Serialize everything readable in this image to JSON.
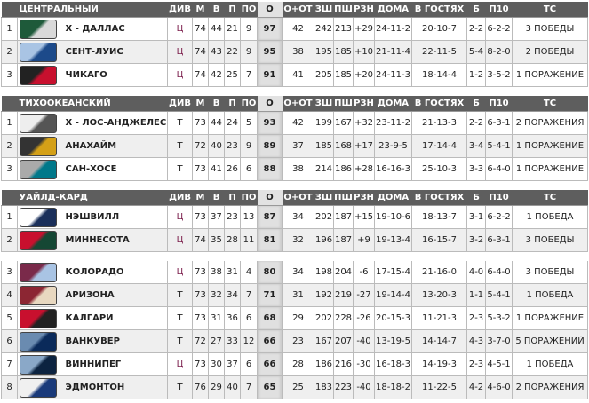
{
  "columns": [
    "ДИВ",
    "М",
    "В",
    "П",
    "ПО",
    "О",
    "О+ОТ",
    "ЗШ",
    "ПШ",
    "РЗН",
    "ДОМА",
    "В ГОСТЯХ",
    "Б",
    "П10",
    "ТС"
  ],
  "groups": [
    {
      "title": "ЦЕНТРАЛЬНЫЙ",
      "rows": [
        {
          "rank": "1",
          "team": "X - ДАЛЛАС",
          "logo": [
            "#1e5a3a",
            "#d9d9d9"
          ],
          "div": "Ц",
          "stats": [
            "74",
            "44",
            "21",
            "9",
            "97",
            "42",
            "242",
            "213",
            "+29",
            "24-11-2",
            "20-10-7",
            "2-2",
            "6-2-2",
            "3 ПОБЕДЫ"
          ]
        },
        {
          "rank": "2",
          "team": "СЕНТ-ЛУИС",
          "logo": [
            "#a9c4e4",
            "#1c4a8a"
          ],
          "div": "Ц",
          "stats": [
            "74",
            "43",
            "22",
            "9",
            "95",
            "38",
            "195",
            "185",
            "+10",
            "21-11-4",
            "22-11-5",
            "5-4",
            "8-2-0",
            "2 ПОБЕДЫ"
          ]
        },
        {
          "rank": "3",
          "team": "ЧИКАГО",
          "logo": [
            "#222",
            "#c8102e"
          ],
          "div": "Ц",
          "stats": [
            "74",
            "42",
            "25",
            "7",
            "91",
            "41",
            "205",
            "185",
            "+20",
            "24-11-3",
            "18-14-4",
            "1-2",
            "3-5-2",
            "1 ПОРАЖЕНИЕ"
          ]
        }
      ]
    },
    {
      "title": "ТИХООКЕАНСКИЙ",
      "rows": [
        {
          "rank": "1",
          "team": "X - ЛОС-АНДЖЕЛЕС",
          "logo": [
            "#eee",
            "#555"
          ],
          "div": "Т",
          "stats": [
            "73",
            "44",
            "24",
            "5",
            "93",
            "42",
            "199",
            "167",
            "+32",
            "23-11-2",
            "21-13-3",
            "2-2",
            "6-3-1",
            "2 ПОРАЖЕНИЯ"
          ]
        },
        {
          "rank": "2",
          "team": "АНАХАЙМ",
          "logo": [
            "#333",
            "#d4a017"
          ],
          "div": "Т",
          "stats": [
            "72",
            "40",
            "23",
            "9",
            "89",
            "37",
            "185",
            "168",
            "+17",
            "23-9-5",
            "17-14-4",
            "3-4",
            "5-4-1",
            "1 ПОРАЖЕНИЕ"
          ]
        },
        {
          "rank": "3",
          "team": "САН-ХОСЕ",
          "logo": [
            "#aaa",
            "#00788a"
          ],
          "div": "Т",
          "stats": [
            "73",
            "41",
            "26",
            "6",
            "88",
            "38",
            "214",
            "186",
            "+28",
            "16-16-3",
            "25-10-3",
            "3-3",
            "6-4-0",
            "1 ПОРАЖЕНИЕ"
          ]
        }
      ]
    },
    {
      "title": "УАЙЛД-КАРД",
      "rows": [
        {
          "rank": "1",
          "team": "НЭШВИЛЛ",
          "logo": [
            "#fff",
            "#1a2f5a"
          ],
          "div": "Ц",
          "stats": [
            "73",
            "37",
            "23",
            "13",
            "87",
            "34",
            "202",
            "187",
            "+15",
            "19-10-6",
            "18-13-7",
            "3-1",
            "6-2-2",
            "1 ПОБЕДА"
          ]
        },
        {
          "rank": "2",
          "team": "МИННЕСОТА",
          "logo": [
            "#c8102e",
            "#154734"
          ],
          "div": "Ц",
          "stats": [
            "74",
            "35",
            "28",
            "11",
            "81",
            "32",
            "196",
            "187",
            "+9",
            "19-13-4",
            "16-15-7",
            "3-2",
            "6-3-1",
            "3 ПОБЕДЫ"
          ]
        }
      ]
    },
    {
      "title": "",
      "rows": [
        {
          "rank": "3",
          "team": "КОЛОРАДО",
          "logo": [
            "#7a2a4a",
            "#a9c4e4"
          ],
          "div": "Ц",
          "stats": [
            "73",
            "38",
            "31",
            "4",
            "80",
            "34",
            "198",
            "204",
            "-6",
            "17-15-4",
            "21-16-0",
            "4-0",
            "6-4-0",
            "3 ПОБЕДЫ"
          ]
        },
        {
          "rank": "4",
          "team": "АРИЗОНА",
          "logo": [
            "#8c2633",
            "#e8d8c0"
          ],
          "div": "Т",
          "stats": [
            "73",
            "32",
            "34",
            "7",
            "71",
            "31",
            "192",
            "219",
            "-27",
            "19-14-4",
            "13-20-3",
            "1-1",
            "5-4-1",
            "1 ПОБЕДА"
          ]
        },
        {
          "rank": "5",
          "team": "КАЛГАРИ",
          "logo": [
            "#c8102e",
            "#222"
          ],
          "div": "Т",
          "stats": [
            "73",
            "31",
            "36",
            "6",
            "68",
            "29",
            "202",
            "228",
            "-26",
            "20-15-3",
            "11-21-3",
            "2-3",
            "5-3-2",
            "1 ПОРАЖЕНИЕ"
          ]
        },
        {
          "rank": "6",
          "team": "ВАНКУВЕР",
          "logo": [
            "#6a8bb0",
            "#0a2a5a"
          ],
          "div": "Т",
          "stats": [
            "72",
            "27",
            "33",
            "12",
            "66",
            "23",
            "167",
            "207",
            "-40",
            "13-19-5",
            "14-14-7",
            "4-3",
            "3-7-0",
            "5 ПОРАЖЕНИЙ"
          ]
        },
        {
          "rank": "7",
          "team": "ВИННИПЕГ",
          "logo": [
            "#8aa8c8",
            "#0c2340"
          ],
          "div": "Ц",
          "stats": [
            "73",
            "30",
            "37",
            "6",
            "66",
            "28",
            "186",
            "216",
            "-30",
            "16-18-3",
            "14-19-3",
            "2-3",
            "4-5-1",
            "1 ПОБЕДА"
          ]
        },
        {
          "rank": "8",
          "team": "ЭДМОНТОН",
          "logo": [
            "#f0f0f0",
            "#1a3a7a"
          ],
          "div": "Т",
          "stats": [
            "76",
            "29",
            "40",
            "7",
            "65",
            "25",
            "183",
            "223",
            "-40",
            "18-18-2",
            "11-22-5",
            "4-2",
            "4-6-0",
            "2 ПОРАЖЕНИЯ"
          ]
        }
      ]
    }
  ]
}
